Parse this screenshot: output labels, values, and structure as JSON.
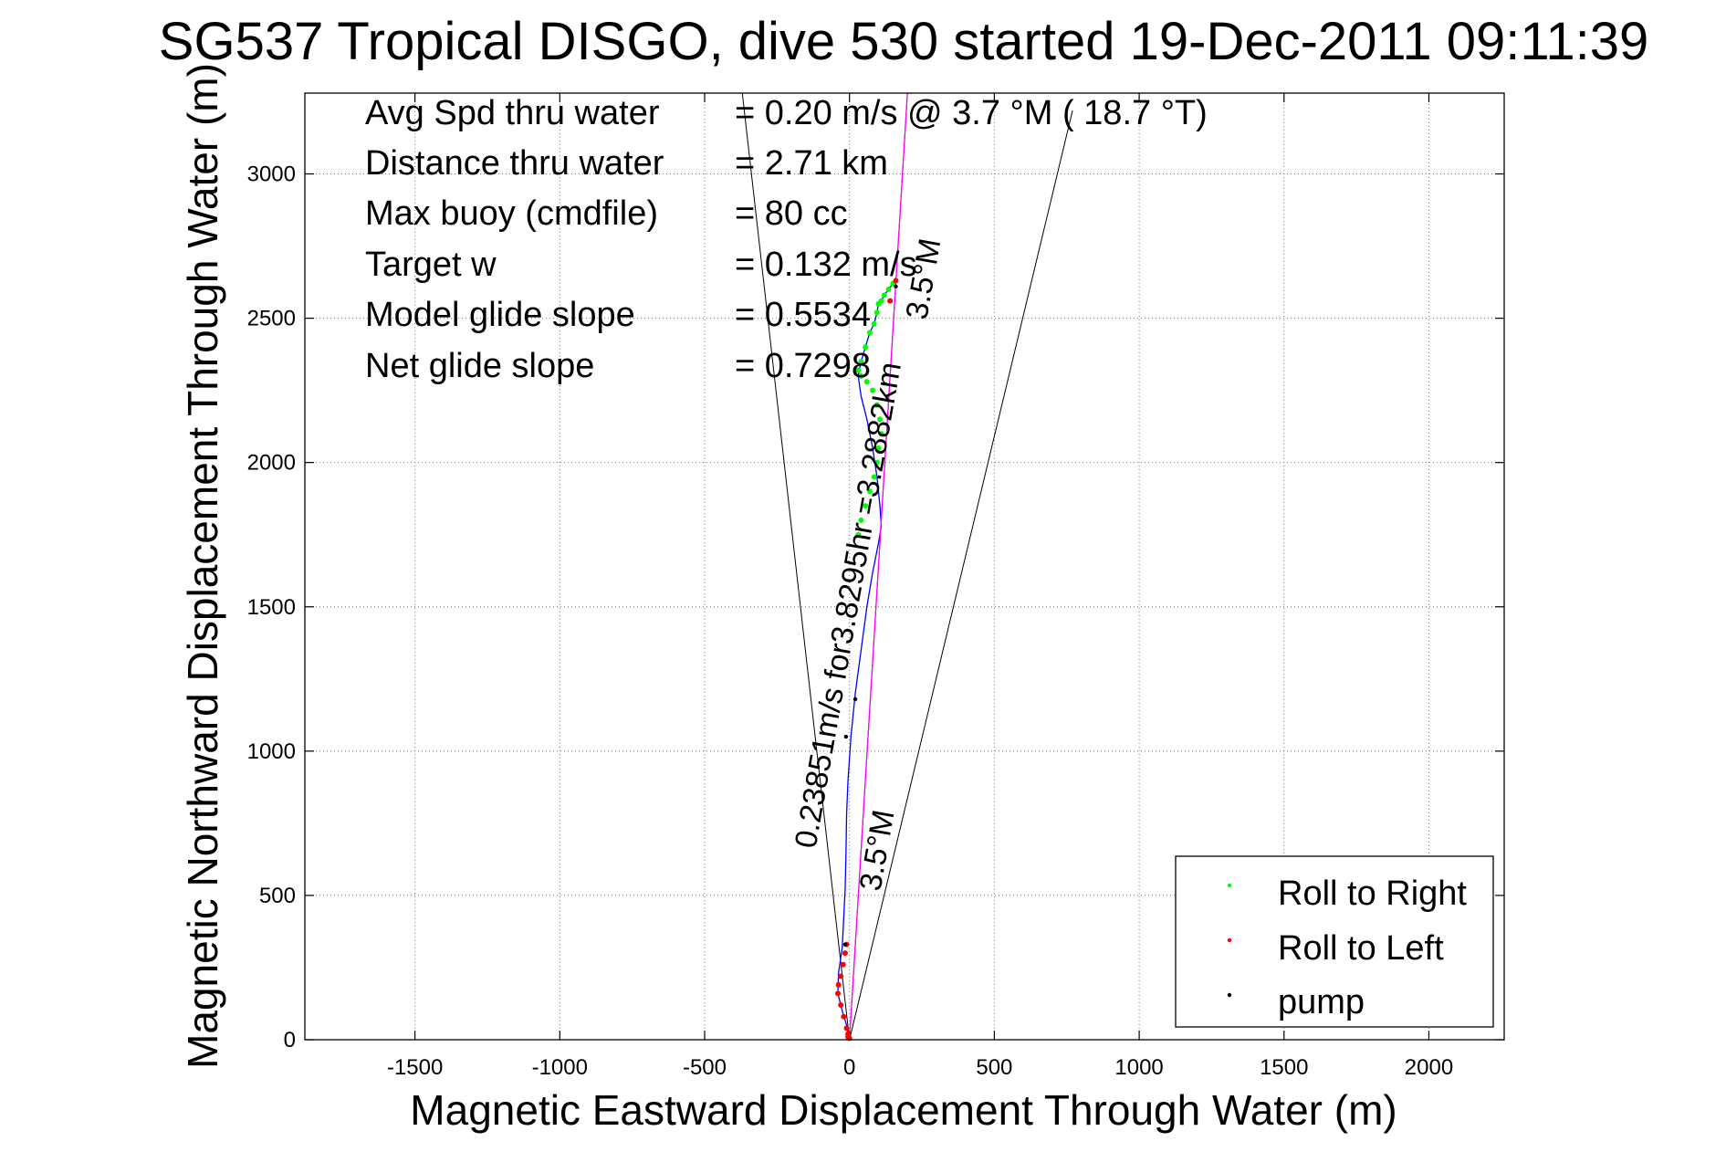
{
  "chart_data": {
    "type": "line",
    "title": "SG537 Tropical DISGO, dive 530 started 19-Dec-2011 09:11:39",
    "xlabel": "Magnetic Eastward Displacement Through Water (m)",
    "ylabel": "Magnetic Northward Displacement Through Water (m)",
    "xlim": [
      -1880,
      2260
    ],
    "ylim": [
      0,
      3280
    ],
    "xticks": [
      -1500,
      -1000,
      -500,
      0,
      500,
      1000,
      1500,
      2000
    ],
    "yticks": [
      0,
      500,
      1000,
      1500,
      2000,
      2500,
      3000
    ],
    "grid": true,
    "legend": {
      "placement": "bottom-right",
      "entries": [
        {
          "label": "Roll to Right",
          "color": "#00ff00"
        },
        {
          "label": "Roll to Left",
          "color": "#ff0000"
        },
        {
          "label": "pump",
          "color": "#000000"
        }
      ]
    },
    "stats": [
      {
        "label": "Avg Spd thru water",
        "value": "=  0.20 m/s @   3.7 °M ( 18.7 °T)"
      },
      {
        "label": "Distance thru water",
        "value": "=  2.71 km"
      },
      {
        "label": "Max buoy (cmdfile)",
        "value": "= 80 cc"
      },
      {
        "label": "Target w",
        "value": "= 0.132 m/s"
      },
      {
        "label": "Model glide slope",
        "value": "= 0.5534"
      },
      {
        "label": "Net glide slope",
        "value": "= 0.7298"
      }
    ],
    "annotations": [
      {
        "text": "0.23851m/s for3.8295hr =3.2882km",
        "x": 30,
        "y": 1500
      },
      {
        "text": "3.5°M",
        "x": 130,
        "y": 650
      },
      {
        "text": "3.5°M",
        "x": 290,
        "y": 2630
      }
    ],
    "cone_lines": [
      {
        "x": [
          0,
          -370
        ],
        "y": [
          0,
          3280
        ]
      },
      {
        "x": [
          0,
          770
        ],
        "y": [
          0,
          3220
        ]
      },
      {
        "x": [
          0,
          200
        ],
        "y": [
          0,
          3280
        ]
      }
    ],
    "series": [
      {
        "color": "#0000ff",
        "x": [
          0,
          -10,
          -25,
          -40,
          -38,
          -25,
          -20,
          -15,
          -12,
          -10,
          -5,
          5,
          20,
          40,
          60,
          80,
          100,
          110,
          105,
          95,
          80,
          60,
          40,
          30,
          40,
          55,
          70,
          85,
          95,
          100,
          110,
          120,
          135,
          150,
          160
        ],
        "y": [
          0,
          50,
          100,
          160,
          230,
          320,
          420,
          520,
          650,
          780,
          900,
          1050,
          1200,
          1350,
          1500,
          1620,
          1720,
          1780,
          1850,
          1950,
          2050,
          2150,
          2230,
          2300,
          2350,
          2400,
          2450,
          2480,
          2520,
          2550,
          2560,
          2580,
          2600,
          2620,
          2640
        ]
      },
      {
        "color": "#ff00ff",
        "x": [
          0,
          200
        ],
        "y": [
          0,
          3280
        ]
      }
    ],
    "markers": {
      "roll_right": {
        "x": [
          30,
          40,
          55,
          70,
          85,
          95,
          100,
          110,
          105,
          95,
          80,
          60,
          40,
          30,
          40,
          55,
          70,
          85,
          95,
          100,
          110,
          120,
          135,
          150
        ],
        "y": [
          1750,
          1800,
          1850,
          1900,
          1950,
          2000,
          2050,
          2100,
          2150,
          2200,
          2250,
          2280,
          2300,
          2320,
          2350,
          2400,
          2450,
          2480,
          2520,
          2550,
          2560,
          2580,
          2600,
          2620
        ]
      },
      "roll_left": {
        "x": [
          -5,
          -10,
          -20,
          -30,
          -40,
          -38,
          -30,
          -22,
          -15,
          -10,
          -5,
          0,
          160,
          140
        ],
        "y": [
          10,
          40,
          80,
          120,
          160,
          190,
          220,
          260,
          300,
          330,
          20,
          5,
          2630,
          2560
        ]
      },
      "pump": {
        "x": [
          -15,
          -12,
          20,
          160
        ],
        "y": [
          330,
          1050,
          1180,
          2610
        ]
      }
    }
  }
}
